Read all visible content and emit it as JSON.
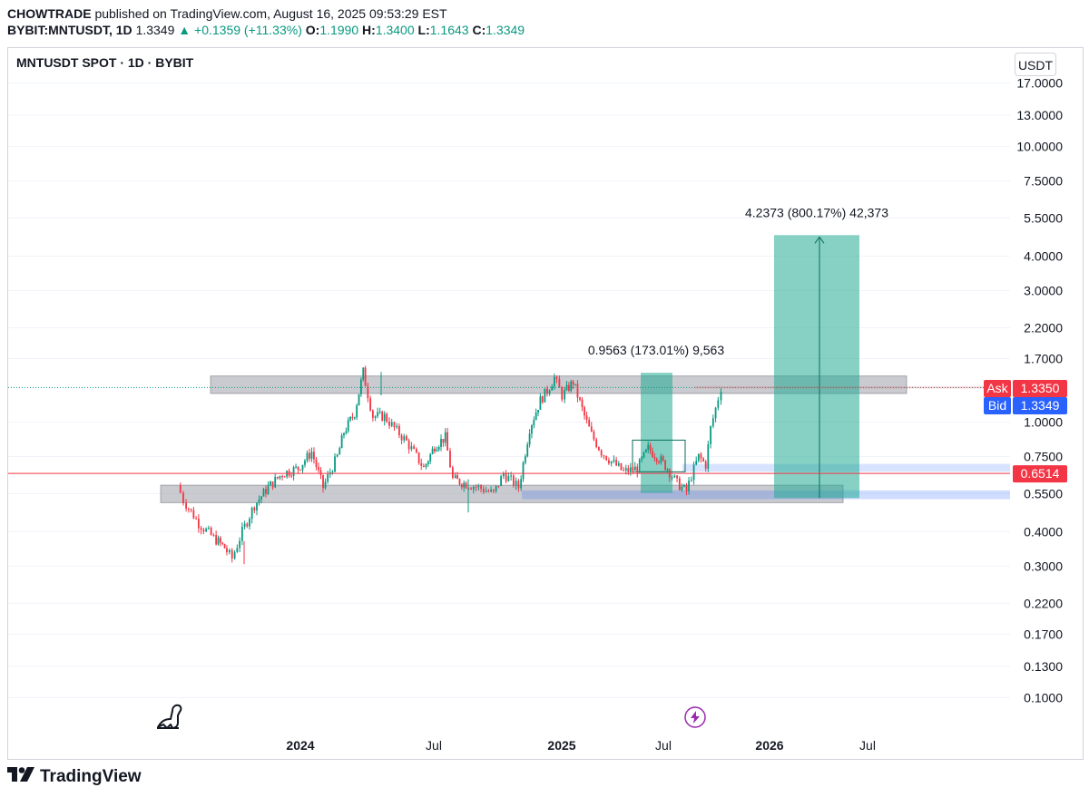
{
  "header": {
    "author": "CHOWTRADE",
    "published_text": "published on TradingView.com, August 16, 2025 09:53:29 EST"
  },
  "ohlc": {
    "symbol": "BYBIT:MNTUSDT, 1D",
    "last": "1.3349",
    "change": "▲ +0.1359 (+11.33%)",
    "o_label": "O:",
    "o": "1.1990",
    "h_label": "H:",
    "h": "1.3400",
    "l_label": "L:",
    "l": "1.1643",
    "c_label": "C:",
    "c": "1.3349"
  },
  "chart_title": "MNTUSDT SPOT · 1D · BYBIT",
  "currency": "USDT",
  "footer": {
    "brand": "TradingView"
  },
  "colors": {
    "up": "#089981",
    "down": "#f23645",
    "zone": "#9598a1",
    "target": "#22ab94",
    "blue_zone": "#2962ff",
    "ask": "#f23645",
    "bid": "#2962ff"
  },
  "chart_data": {
    "type": "candlestick",
    "scale": "log",
    "y_ticks": [
      "17.0000",
      "13.0000",
      "10.0000",
      "7.5000",
      "5.5000",
      "4.0000",
      "3.0000",
      "2.2000",
      "1.7000",
      "1.0000",
      "0.7500",
      "0.5500",
      "0.4000",
      "0.3000",
      "0.2200",
      "0.1700",
      "0.1300",
      "0.1000"
    ],
    "x_ticks": [
      "2024",
      "Jul",
      "2025",
      "Jul",
      "2026",
      "Jul"
    ],
    "ask": {
      "label": "Ask",
      "value": "1.3350"
    },
    "bid": {
      "label": "Bid",
      "value": "1.3349"
    },
    "support_line": {
      "value": "0.6514"
    },
    "zones": [
      {
        "name": "resistance",
        "low": 1.27,
        "high": 1.47
      },
      {
        "name": "support",
        "low": 0.51,
        "high": 0.59
      }
    ],
    "measurements": [
      {
        "label": "0.9563 (173.01%) 9,563",
        "from": 0.553,
        "to": 1.51
      },
      {
        "label": "4.2373 (800.17%) 42,373",
        "from": 0.53,
        "to": 4.77
      }
    ],
    "price_path": [
      [
        "2023-07-17",
        0.59
      ],
      [
        "2023-07-25",
        0.52
      ],
      [
        "2023-08-15",
        0.43
      ],
      [
        "2023-09-05",
        0.38
      ],
      [
        "2023-09-20",
        0.35
      ],
      [
        "2023-10-01",
        0.32
      ],
      [
        "2023-10-15",
        0.4
      ],
      [
        "2023-11-01",
        0.5
      ],
      [
        "2023-11-20",
        0.58
      ],
      [
        "2023-12-10",
        0.65
      ],
      [
        "2024-01-01",
        0.68
      ],
      [
        "2024-01-20",
        0.78
      ],
      [
        "2024-02-05",
        0.58
      ],
      [
        "2024-02-25",
        0.75
      ],
      [
        "2024-03-05",
        0.92
      ],
      [
        "2024-03-20",
        1.08
      ],
      [
        "2024-04-01",
        1.52
      ],
      [
        "2024-04-15",
        1.05
      ],
      [
        "2024-05-01",
        1.05
      ],
      [
        "2024-05-15",
        0.95
      ],
      [
        "2024-06-01",
        0.85
      ],
      [
        "2024-06-15",
        0.75
      ],
      [
        "2024-06-25",
        0.68
      ],
      [
        "2024-07-10",
        0.82
      ],
      [
        "2024-07-25",
        0.88
      ],
      [
        "2024-08-05",
        0.62
      ],
      [
        "2024-08-20",
        0.6
      ],
      [
        "2024-09-10",
        0.58
      ],
      [
        "2024-10-01",
        0.55
      ],
      [
        "2024-10-15",
        0.65
      ],
      [
        "2024-11-05",
        0.58
      ],
      [
        "2024-11-20",
        0.95
      ],
      [
        "2024-12-05",
        1.2
      ],
      [
        "2024-12-15",
        1.3
      ],
      [
        "2024-12-25",
        1.45
      ],
      [
        "2025-01-05",
        1.25
      ],
      [
        "2025-01-20",
        1.4
      ],
      [
        "2025-02-05",
        1.05
      ],
      [
        "2025-02-15",
        0.9
      ],
      [
        "2025-03-01",
        0.78
      ],
      [
        "2025-03-15",
        0.72
      ],
      [
        "2025-04-01",
        0.66
      ],
      [
        "2025-04-20",
        0.68
      ],
      [
        "2025-05-05",
        0.8
      ],
      [
        "2025-05-20",
        0.74
      ],
      [
        "2025-06-01",
        0.68
      ],
      [
        "2025-06-15",
        0.6
      ],
      [
        "2025-06-28",
        0.56
      ],
      [
        "2025-07-05",
        0.64
      ],
      [
        "2025-07-15",
        0.75
      ],
      [
        "2025-07-25",
        0.7
      ],
      [
        "2025-08-01",
        0.95
      ],
      [
        "2025-08-08",
        1.12
      ],
      [
        "2025-08-16",
        1.335
      ]
    ]
  }
}
